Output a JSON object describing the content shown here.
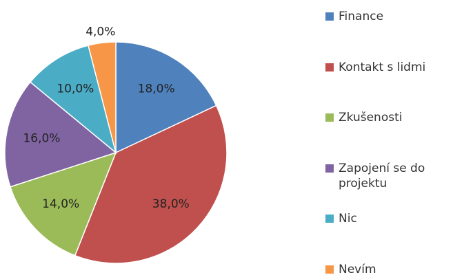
{
  "chart_data": {
    "type": "pie",
    "categories": [
      "Finance",
      "Kontakt s lidmi",
      "Zkušenosti",
      "Zapojení se do projektu",
      "Nic",
      "Nevím"
    ],
    "values": [
      18,
      38,
      14,
      16,
      10,
      4
    ],
    "value_labels": [
      "18,0%",
      "38,0%",
      "14,0%",
      "16,0%",
      "10,0%",
      "4,0%"
    ],
    "colors": [
      "#4f81bd",
      "#c0504d",
      "#9bbb59",
      "#8064a2",
      "#4bacc6",
      "#f79646"
    ],
    "legend": "right"
  }
}
